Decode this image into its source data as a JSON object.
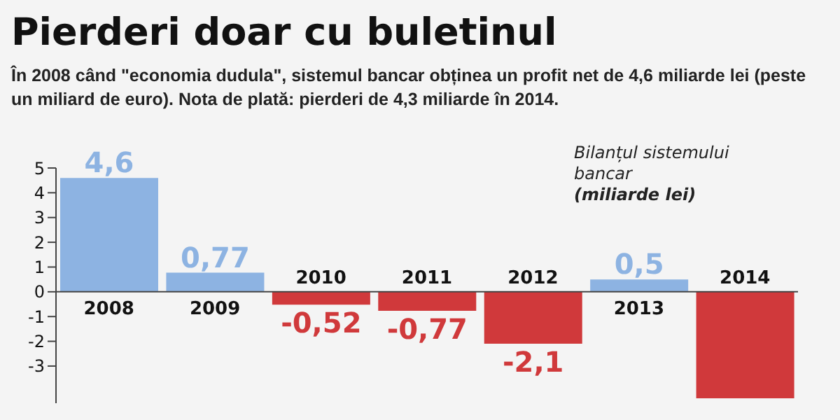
{
  "chart_data": {
    "type": "bar",
    "title": "Pierderi doar cu buletinul",
    "subtitle": "În 2008 când \"economia dudula\", sistemul bancar obținea un profit net de 4,6 miliarde lei (peste un miliard de euro). Nota de plată: pierderi de 4,3 miliarde în 2014.",
    "annotations": [
      "Bilanțul sistemului bancar",
      "(miliarde lei)"
    ],
    "categories": [
      "2008",
      "2009",
      "2010",
      "2011",
      "2012",
      "2013",
      "2014"
    ],
    "values": [
      4.6,
      0.77,
      -0.52,
      -0.77,
      -2.1,
      0.5,
      -4.3
    ],
    "colors": [
      "#8db3e2",
      "#8db3e2",
      "#d0393b",
      "#d0393b",
      "#d0393b",
      "#8db3e2",
      "#d0393b"
    ],
    "value_labels": [
      "4,6",
      "0,77",
      "-0,52",
      "-0,77",
      "-2,1",
      "0,5",
      null
    ],
    "ylim": [
      -4.5,
      5
    ],
    "yticks": [
      5,
      4,
      3,
      2,
      1,
      0,
      -1,
      -2,
      -3
    ],
    "grid": false,
    "legend": false
  }
}
